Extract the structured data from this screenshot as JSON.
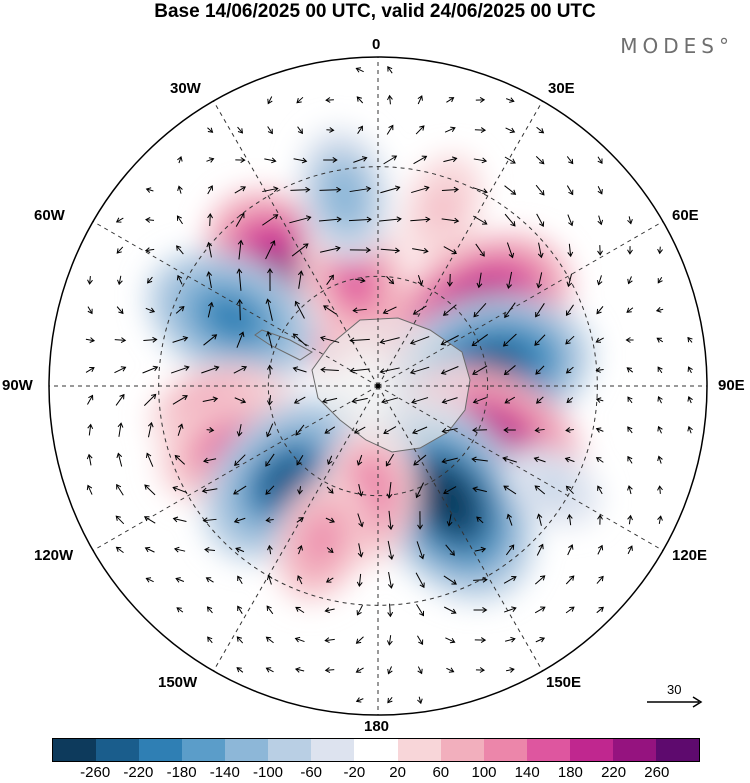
{
  "title": "Base 14/06/2025 00 UTC, valid 24/06/2025 00 UTC",
  "brand": "MODES°",
  "longitude_labels": {
    "lon_0": "0",
    "lon_30e": "30E",
    "lon_60e": "60E",
    "lon_90e": "90E",
    "lon_120e": "120E",
    "lon_150e": "150E",
    "lon_180": "180",
    "lon_150w": "150W",
    "lon_120w": "120W",
    "lon_90w": "90W",
    "lon_60w": "60W",
    "lon_30w": "30W"
  },
  "vector_scale_label": "30",
  "colorbar": {
    "colors": [
      "#0d3a5c",
      "#1a5d8c",
      "#2f7fb4",
      "#5b9dc9",
      "#8db7d8",
      "#b9cfe4",
      "#dde3ef",
      "#ffffff",
      "#f8d6d9",
      "#f2afbd",
      "#ec86aa",
      "#de569f",
      "#c0278f",
      "#95137f",
      "#5e0a6e"
    ],
    "ticks": [
      "-260",
      "-220",
      "-180",
      "-140",
      "-100",
      "-60",
      "-20",
      "20",
      "60",
      "100",
      "140",
      "180",
      "220",
      "260"
    ]
  },
  "anomaly_centers": [
    {
      "lon": 320,
      "colat": 38,
      "value": 240
    },
    {
      "lon": 348,
      "colat": 30,
      "value": 160
    },
    {
      "lon": 55,
      "colat": 33,
      "value": 250
    },
    {
      "lon": 80,
      "colat": 32,
      "value": -240
    },
    {
      "lon": 295,
      "colat": 44,
      "value": -200
    },
    {
      "lon": 260,
      "colat": 43,
      "value": 140
    },
    {
      "lon": 247,
      "colat": 43,
      "value": 160
    },
    {
      "lon": 225,
      "colat": 36,
      "value": -220
    },
    {
      "lon": 115,
      "colat": 34,
      "value": 220
    },
    {
      "lon": 148,
      "colat": 37,
      "value": -270
    },
    {
      "lon": 185,
      "colat": 30,
      "value": 130
    },
    {
      "lon": 200,
      "colat": 45,
      "value": 110
    },
    {
      "lon": 20,
      "colat": 52,
      "value": 70
    },
    {
      "lon": 350,
      "colat": 53,
      "value": -120
    },
    {
      "lon": 120,
      "colat": 55,
      "value": -60
    },
    {
      "lon": 0,
      "colat": 0,
      "value": 0
    }
  ]
}
